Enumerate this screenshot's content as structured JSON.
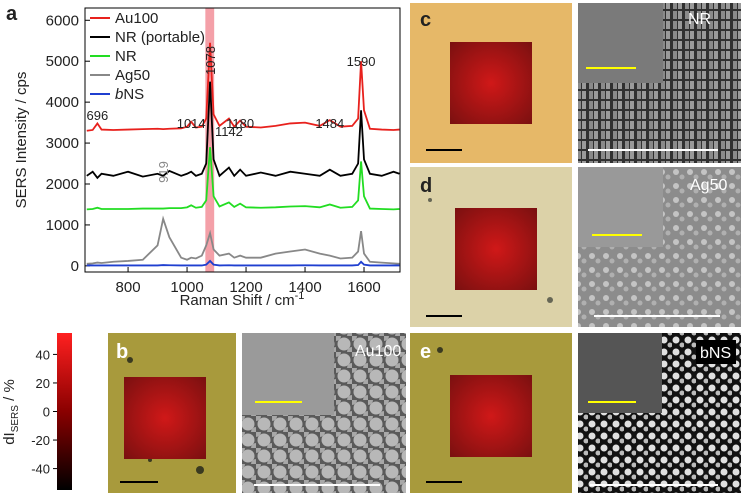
{
  "chart_data": {
    "type": "line",
    "x_label_parts": [
      "Raman Shift / cm",
      "-1"
    ],
    "y_label": "SERS Intensity / cps",
    "xlim": [
      654,
      1722
    ],
    "ylim": [
      -150,
      6300
    ],
    "xticks": [
      800,
      1000,
      1200,
      1400,
      1600
    ],
    "yticks": [
      0,
      1000,
      2000,
      3000,
      4000,
      5000,
      6000
    ],
    "highlight": [
      1062,
      1092
    ],
    "highlight_color": "#f4a0a8",
    "x": [
      660,
      680,
      696,
      710,
      750,
      800,
      850,
      900,
      919,
      940,
      980,
      1000,
      1014,
      1030,
      1050,
      1065,
      1078,
      1090,
      1110,
      1142,
      1160,
      1180,
      1200,
      1250,
      1300,
      1350,
      1400,
      1450,
      1484,
      1520,
      1560,
      1580,
      1590,
      1600,
      1620,
      1660,
      1700,
      1720
    ],
    "series": [
      {
        "name": "Au100",
        "color": "#e8211d",
        "values": [
          3300,
          3320,
          3480,
          3330,
          3320,
          3330,
          3340,
          3350,
          3340,
          3350,
          3360,
          3400,
          3520,
          3380,
          3400,
          3600,
          5450,
          3700,
          3420,
          3600,
          3400,
          3550,
          3400,
          3380,
          3420,
          3480,
          3500,
          3420,
          3560,
          3400,
          3420,
          3600,
          5000,
          3800,
          3350,
          3330,
          3320,
          3330
        ]
      },
      {
        "name": "NR (portable)",
        "color": "#000000",
        "values": [
          2200,
          2300,
          2150,
          2250,
          2200,
          2300,
          2180,
          2250,
          2200,
          2320,
          2200,
          2250,
          2300,
          2200,
          2250,
          2500,
          4500,
          2600,
          2200,
          2400,
          2200,
          2350,
          2200,
          2280,
          2200,
          2300,
          2250,
          2200,
          2350,
          2200,
          2250,
          2500,
          3800,
          2600,
          2250,
          2200,
          2300,
          2250
        ]
      },
      {
        "name": "NR",
        "color": "#22dd22",
        "values": [
          1380,
          1390,
          1420,
          1390,
          1390,
          1390,
          1400,
          1400,
          1400,
          1410,
          1410,
          1430,
          1480,
          1420,
          1440,
          1600,
          2900,
          1700,
          1450,
          1550,
          1440,
          1520,
          1430,
          1420,
          1430,
          1450,
          1460,
          1430,
          1500,
          1420,
          1440,
          1600,
          2550,
          1700,
          1400,
          1390,
          1380,
          1390
        ]
      },
      {
        "name": "Ag50",
        "color": "#888888",
        "values": [
          50,
          60,
          80,
          70,
          100,
          120,
          150,
          500,
          1150,
          700,
          200,
          150,
          200,
          180,
          250,
          500,
          800,
          400,
          250,
          300,
          200,
          250,
          200,
          200,
          300,
          350,
          400,
          300,
          250,
          180,
          200,
          350,
          850,
          300,
          100,
          80,
          60,
          50
        ]
      },
      {
        "name_parts": [
          "b",
          "NS"
        ],
        "color": "#1f3fd0",
        "values": [
          10,
          10,
          10,
          10,
          10,
          10,
          10,
          10,
          20,
          15,
          10,
          10,
          10,
          10,
          10,
          30,
          120,
          30,
          10,
          15,
          10,
          10,
          10,
          10,
          10,
          10,
          15,
          10,
          10,
          10,
          10,
          20,
          100,
          30,
          10,
          10,
          10,
          10
        ]
      }
    ],
    "annotations": [
      "696",
      "1014",
      "1078",
      "1142",
      "1180",
      "1484",
      "1590",
      "919"
    ],
    "colorbar": {
      "label_parts": [
        "dI",
        "SERS",
        " / %"
      ],
      "lim": [
        -55,
        55
      ],
      "ticks": [
        40,
        20,
        0,
        -20,
        -40
      ]
    }
  },
  "panels": {
    "a": "a",
    "b": "b",
    "c": "c",
    "d": "d",
    "e": "e",
    "au100": "Au100",
    "nr": "NR",
    "ag50": "Ag50",
    "bns": "bNS"
  }
}
